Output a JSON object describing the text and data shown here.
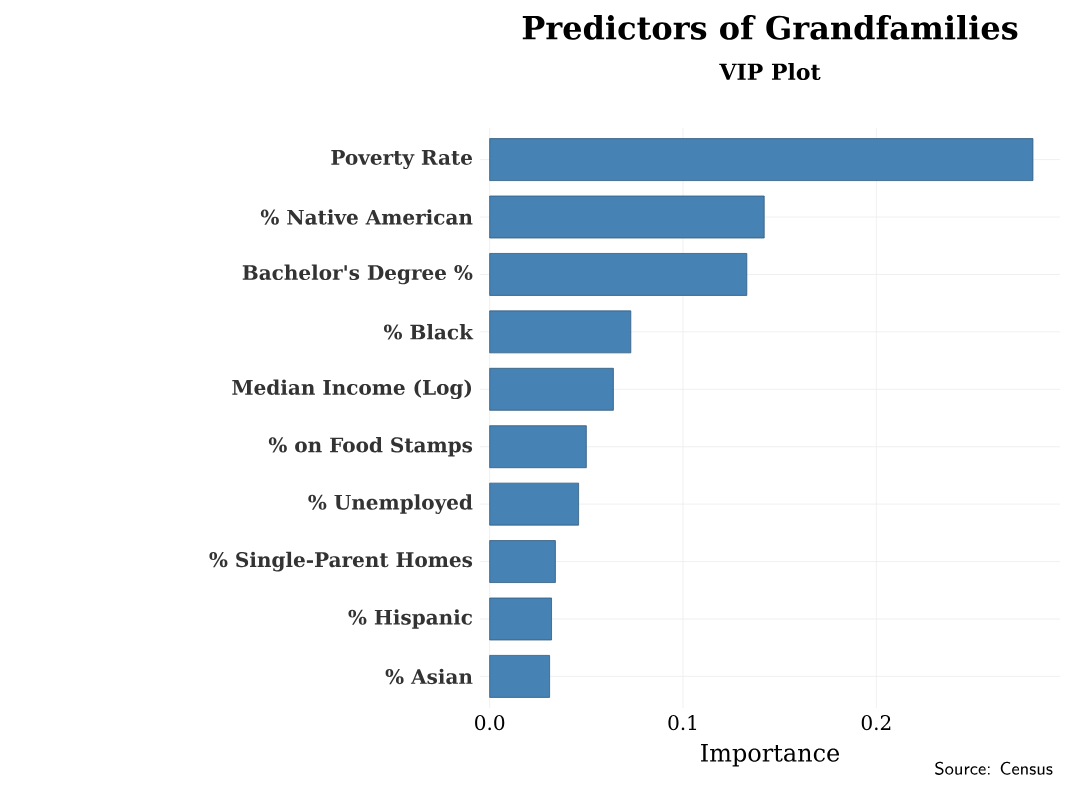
{
  "chart_data": {
    "type": "bar",
    "orientation": "horizontal",
    "title": "Predictors of Grandfamilies",
    "subtitle": "VIP Plot",
    "xlabel": "Importance",
    "categories": [
      "Poverty Rate",
      "% Native American",
      "Bachelor's Degree %",
      "% Black",
      "Median Income (Log)",
      "% on Food Stamps",
      "% Unemployed",
      "% Single-Parent Homes",
      "% Hispanic",
      "% Asian"
    ],
    "values": [
      0.281,
      0.142,
      0.133,
      0.073,
      0.064,
      0.05,
      0.046,
      0.034,
      0.032,
      0.031
    ],
    "color": "#4682b4",
    "xlim": [
      -0.005,
      0.295
    ],
    "xticks": [
      {
        "value": 0,
        "label": "0.0"
      },
      0.1,
      0.2
    ],
    "grid": true,
    "annotations": [
      "Source: Census"
    ]
  }
}
